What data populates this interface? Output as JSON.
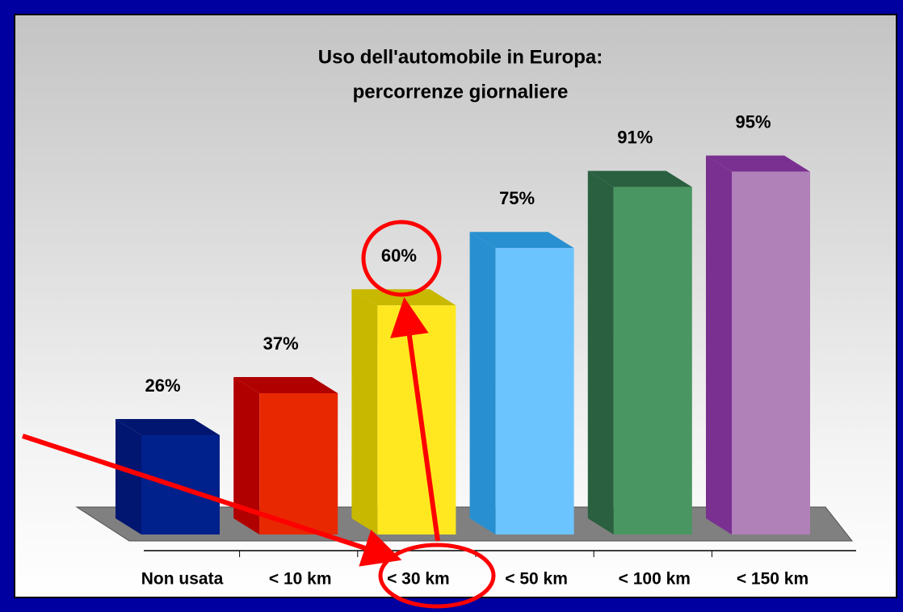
{
  "chart_data": {
    "type": "bar3d",
    "title": "Uso dell'automobile in Europa:",
    "subtitle": "percorrenze giornaliere",
    "categories": [
      "Non usata",
      "< 10 km",
      "< 30 km",
      "< 50 km",
      "< 100 km",
      "< 150 km"
    ],
    "values": [
      26,
      37,
      60,
      75,
      91,
      95
    ],
    "value_labels": [
      "26%",
      "37%",
      "60%",
      "75%",
      "91%",
      "95%"
    ],
    "colors": [
      "#00208c",
      "#e82800",
      "#ffe820",
      "#6cc4ff",
      "#4a9662",
      "#b080b8"
    ],
    "side_colors": [
      "#001670",
      "#b00000",
      "#c8b800",
      "#2890d0",
      "#2a6040",
      "#7a3090"
    ],
    "ylim": [
      0,
      100
    ]
  }
}
